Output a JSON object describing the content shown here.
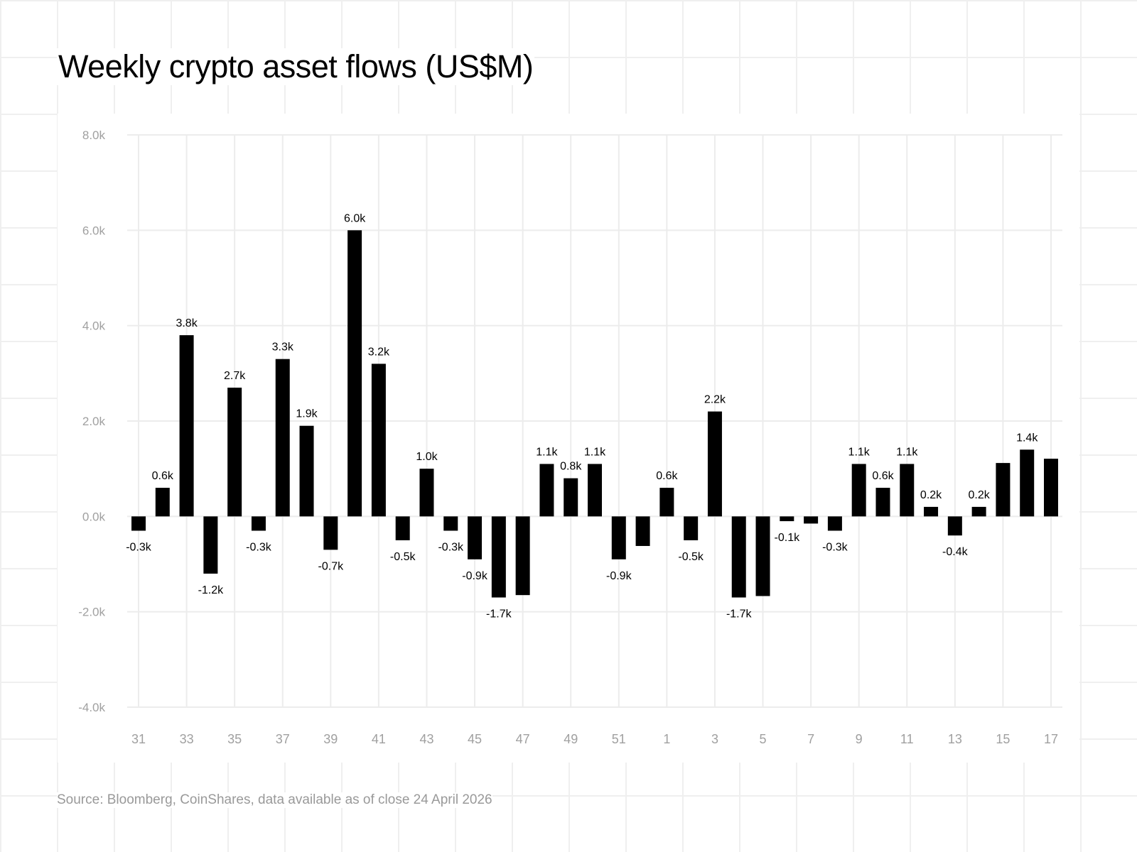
{
  "chart_data": {
    "type": "bar",
    "title": "Weekly crypto asset flows (US$M)",
    "xlabel": "",
    "ylabel": "",
    "ylim": [
      -4.0,
      8.0
    ],
    "yticks": [
      -4.0,
      -2.0,
      0.0,
      2.0,
      4.0,
      6.0,
      8.0
    ],
    "ytick_labels": [
      "-4.0k",
      "-2.0k",
      "0.0k",
      "2.0k",
      "4.0k",
      "6.0k",
      "8.0k"
    ],
    "grid": true,
    "categories": [
      "31",
      "32",
      "33",
      "34",
      "35",
      "36",
      "37",
      "38",
      "39",
      "40",
      "41",
      "42",
      "43",
      "44",
      "45",
      "46",
      "47",
      "48",
      "49",
      "50",
      "51",
      "52",
      "1",
      "2",
      "3",
      "4",
      "5",
      "6",
      "7",
      "8",
      "9",
      "10",
      "11",
      "12",
      "13",
      "14",
      "15",
      "16",
      "17"
    ],
    "xtick_labels": [
      "31",
      "33",
      "35",
      "37",
      "39",
      "41",
      "43",
      "45",
      "47",
      "49",
      "51",
      "1",
      "3",
      "5",
      "7",
      "9",
      "11",
      "13",
      "15",
      "17"
    ],
    "values": [
      -0.3,
      0.6,
      3.8,
      -1.2,
      2.7,
      -0.3,
      3.3,
      1.9,
      -0.7,
      6.0,
      3.2,
      -0.5,
      1.0,
      -0.3,
      -0.9,
      -1.7,
      -1.65,
      1.1,
      0.8,
      1.1,
      -0.9,
      -0.62,
      0.6,
      -0.5,
      2.2,
      -1.7,
      -1.67,
      -0.1,
      -0.15,
      -0.3,
      1.1,
      0.6,
      1.1,
      0.2,
      -0.4,
      0.2,
      1.12,
      1.4,
      1.21
    ],
    "data_labels": [
      "-0.3k",
      "0.6k",
      "3.8k",
      "-1.2k",
      "2.7k",
      "-0.3k",
      "3.3k",
      "1.9k",
      "-0.7k",
      "6.0k",
      "3.2k",
      "-0.5k",
      "1.0k",
      "-0.3k",
      "-0.9k",
      "-1.7k",
      null,
      "1.1k",
      "0.8k",
      "1.1k",
      "-0.9k",
      null,
      "0.6k",
      "-0.5k",
      "2.2k",
      "-1.7k",
      null,
      "-0.1k",
      null,
      "-0.3k",
      "1.1k",
      "0.6k",
      "1.1k",
      "0.2k",
      "-0.4k",
      "0.2k",
      null,
      "1.4k",
      null
    ],
    "bar_color": "#000000",
    "source": "Source: Bloomberg, CoinShares, data available as of close 24 April 2026"
  }
}
